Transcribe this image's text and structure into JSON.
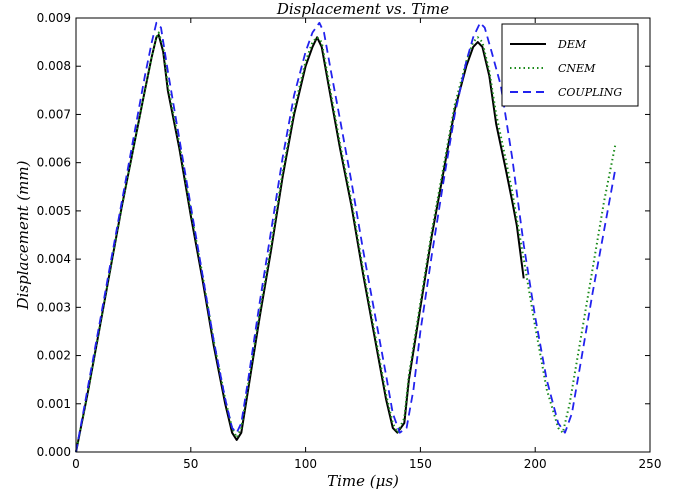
{
  "chart_data": {
    "type": "line",
    "title": "Displacement vs. Time",
    "xlabel": "Time (μs)",
    "ylabel": "Displacement (mm)",
    "xlim": [
      0,
      250
    ],
    "ylim": [
      0,
      0.009
    ],
    "xticks": [
      0,
      50,
      100,
      150,
      200,
      250
    ],
    "yticks": [
      0.0,
      0.001,
      0.002,
      0.003,
      0.004,
      0.005,
      0.006,
      0.007,
      0.008,
      0.009
    ],
    "xtick_labels": [
      "0",
      "50",
      "100",
      "150",
      "200",
      "250"
    ],
    "ytick_labels": [
      "0.000",
      "0.001",
      "0.002",
      "0.003",
      "0.004",
      "0.005",
      "0.006",
      "0.007",
      "0.008",
      "0.009"
    ],
    "grid": false,
    "legend": "top-right",
    "series": [
      {
        "name": "DEM",
        "color": "#000000",
        "style": "solid",
        "points": [
          [
            0,
            0
          ],
          [
            5,
            0.0012
          ],
          [
            10,
            0.0025
          ],
          [
            15,
            0.0038
          ],
          [
            20,
            0.0051
          ],
          [
            25,
            0.0063
          ],
          [
            30,
            0.0075
          ],
          [
            33,
            0.0082
          ],
          [
            35,
            0.0086
          ],
          [
            36,
            0.00865
          ],
          [
            38,
            0.0083
          ],
          [
            40,
            0.0075
          ],
          [
            45,
            0.0063
          ],
          [
            50,
            0.0049
          ],
          [
            55,
            0.0036
          ],
          [
            60,
            0.0022
          ],
          [
            65,
            0.001
          ],
          [
            68,
            0.0004
          ],
          [
            70,
            0.00025
          ],
          [
            72,
            0.0004
          ],
          [
            75,
            0.0013
          ],
          [
            80,
            0.0028
          ],
          [
            85,
            0.0042
          ],
          [
            90,
            0.0057
          ],
          [
            95,
            0.007
          ],
          [
            100,
            0.008
          ],
          [
            103,
            0.0084
          ],
          [
            105,
            0.0086
          ],
          [
            107,
            0.0084
          ],
          [
            110,
            0.0076
          ],
          [
            115,
            0.0063
          ],
          [
            120,
            0.0051
          ],
          [
            125,
            0.0037
          ],
          [
            130,
            0.0024
          ],
          [
            135,
            0.0011
          ],
          [
            138,
            0.0005
          ],
          [
            140,
            0.0004
          ],
          [
            143,
            0.0006
          ],
          [
            145,
            0.0015
          ],
          [
            150,
            0.003
          ],
          [
            155,
            0.0045
          ],
          [
            160,
            0.0058
          ],
          [
            165,
            0.0071
          ],
          [
            170,
            0.008
          ],
          [
            173,
            0.0084
          ],
          [
            175,
            0.0085
          ],
          [
            177,
            0.0084
          ],
          [
            180,
            0.0078
          ],
          [
            183,
            0.0068
          ],
          [
            187,
            0.0059
          ],
          [
            190,
            0.0052
          ],
          [
            192,
            0.0047
          ],
          [
            195,
            0.0036
          ]
        ]
      },
      {
        "name": "CNEM",
        "color": "#1a8a1a",
        "style": "dotted",
        "points": [
          [
            0,
            0
          ],
          [
            5,
            0.0012
          ],
          [
            10,
            0.0025
          ],
          [
            15,
            0.0038
          ],
          [
            20,
            0.0051
          ],
          [
            25,
            0.0063
          ],
          [
            30,
            0.0075
          ],
          [
            33,
            0.0082
          ],
          [
            35,
            0.0086
          ],
          [
            36,
            0.0087
          ],
          [
            38,
            0.0084
          ],
          [
            40,
            0.0076
          ],
          [
            45,
            0.0064
          ],
          [
            50,
            0.005
          ],
          [
            55,
            0.0037
          ],
          [
            60,
            0.0023
          ],
          [
            65,
            0.0011
          ],
          [
            68,
            0.0005
          ],
          [
            70,
            0.0003
          ],
          [
            72,
            0.0005
          ],
          [
            75,
            0.0014
          ],
          [
            80,
            0.0029
          ],
          [
            85,
            0.0043
          ],
          [
            90,
            0.0058
          ],
          [
            95,
            0.0071
          ],
          [
            100,
            0.0081
          ],
          [
            103,
            0.0085
          ],
          [
            105,
            0.0086
          ],
          [
            107,
            0.0085
          ],
          [
            110,
            0.0077
          ],
          [
            115,
            0.0064
          ],
          [
            120,
            0.0052
          ],
          [
            125,
            0.0038
          ],
          [
            130,
            0.0025
          ],
          [
            135,
            0.0012
          ],
          [
            138,
            0.0006
          ],
          [
            140,
            0.0004
          ],
          [
            143,
            0.0007
          ],
          [
            145,
            0.0016
          ],
          [
            150,
            0.0031
          ],
          [
            155,
            0.0046
          ],
          [
            160,
            0.0059
          ],
          [
            165,
            0.0072
          ],
          [
            170,
            0.0081
          ],
          [
            173,
            0.0085
          ],
          [
            175,
            0.0086
          ],
          [
            177,
            0.0085
          ],
          [
            180,
            0.0079
          ],
          [
            183,
            0.007
          ],
          [
            187,
            0.0061
          ],
          [
            190,
            0.0054
          ],
          [
            195,
            0.004
          ],
          [
            200,
            0.0026
          ],
          [
            205,
            0.0013
          ],
          [
            210,
            0.0005
          ],
          [
            212,
            0.0004
          ],
          [
            215,
            0.001
          ],
          [
            220,
            0.0024
          ],
          [
            225,
            0.0038
          ],
          [
            230,
            0.0052
          ],
          [
            235,
            0.0064
          ]
        ]
      },
      {
        "name": "COUPLING",
        "color": "#2222ee",
        "style": "dashed",
        "points": [
          [
            0,
            0
          ],
          [
            5,
            0.0013
          ],
          [
            10,
            0.0026
          ],
          [
            15,
            0.0039
          ],
          [
            20,
            0.0052
          ],
          [
            25,
            0.0065
          ],
          [
            30,
            0.0078
          ],
          [
            33,
            0.0085
          ],
          [
            35,
            0.0089
          ],
          [
            37,
            0.0088
          ],
          [
            40,
            0.0079
          ],
          [
            45,
            0.0065
          ],
          [
            50,
            0.0051
          ],
          [
            55,
            0.0037
          ],
          [
            60,
            0.0023
          ],
          [
            65,
            0.0011
          ],
          [
            68,
            0.0005
          ],
          [
            70,
            0.0004
          ],
          [
            72,
            0.0006
          ],
          [
            75,
            0.0015
          ],
          [
            80,
            0.0031
          ],
          [
            85,
            0.0046
          ],
          [
            90,
            0.0061
          ],
          [
            95,
            0.0074
          ],
          [
            100,
            0.0083
          ],
          [
            103,
            0.0087
          ],
          [
            106,
            0.0089
          ],
          [
            108,
            0.0087
          ],
          [
            111,
            0.0079
          ],
          [
            115,
            0.0069
          ],
          [
            120,
            0.0056
          ],
          [
            125,
            0.0042
          ],
          [
            130,
            0.0029
          ],
          [
            135,
            0.0016
          ],
          [
            138,
            0.0008
          ],
          [
            141,
            0.0004
          ],
          [
            144,
            0.0005
          ],
          [
            147,
            0.0013
          ],
          [
            150,
            0.0025
          ],
          [
            155,
            0.0041
          ],
          [
            160,
            0.0056
          ],
          [
            165,
            0.007
          ],
          [
            170,
            0.0081
          ],
          [
            173,
            0.0086
          ],
          [
            176,
            0.0089
          ],
          [
            178,
            0.0088
          ],
          [
            181,
            0.0083
          ],
          [
            185,
            0.0076
          ],
          [
            190,
            0.0061
          ],
          [
            195,
            0.0043
          ],
          [
            200,
            0.0028
          ],
          [
            205,
            0.0015
          ],
          [
            210,
            0.0006
          ],
          [
            213,
            0.0004
          ],
          [
            216,
            0.0008
          ],
          [
            220,
            0.0019
          ],
          [
            225,
            0.0033
          ],
          [
            230,
            0.0046
          ],
          [
            235,
            0.0059
          ]
        ]
      }
    ]
  }
}
